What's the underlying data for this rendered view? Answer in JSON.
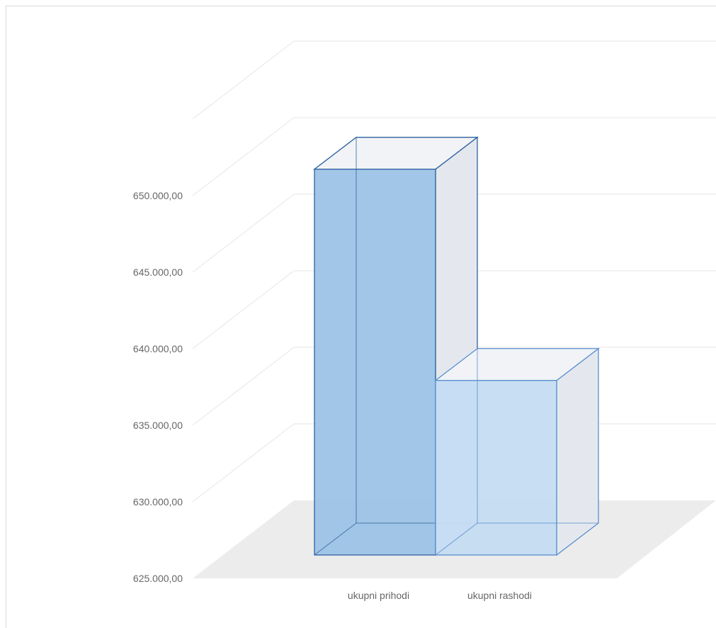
{
  "chart_data": {
    "type": "bar",
    "style": "3d-column",
    "categories": [
      "ukupni prihodi",
      "ukupni rashodi"
    ],
    "values": [
      650200,
      636400
    ],
    "ylim": [
      625000,
      655000
    ],
    "yticks": [
      625000,
      630000,
      635000,
      640000,
      645000,
      650000
    ],
    "ytick_labels": [
      "625.000,00",
      "630.000,00",
      "635.000,00",
      "640.000,00",
      "645.000,00",
      "650.000,00"
    ],
    "grid": true,
    "colors": {
      "bar_front": [
        "#9dc3e6",
        "#c5dcf2"
      ],
      "bar_edge": [
        "#2f62a1",
        "#5b8fd0"
      ],
      "side_face": "#e4e8ee",
      "top_face": "#f1f3f6",
      "floor": "#ececec",
      "gridline": "#e6e6e6"
    }
  }
}
